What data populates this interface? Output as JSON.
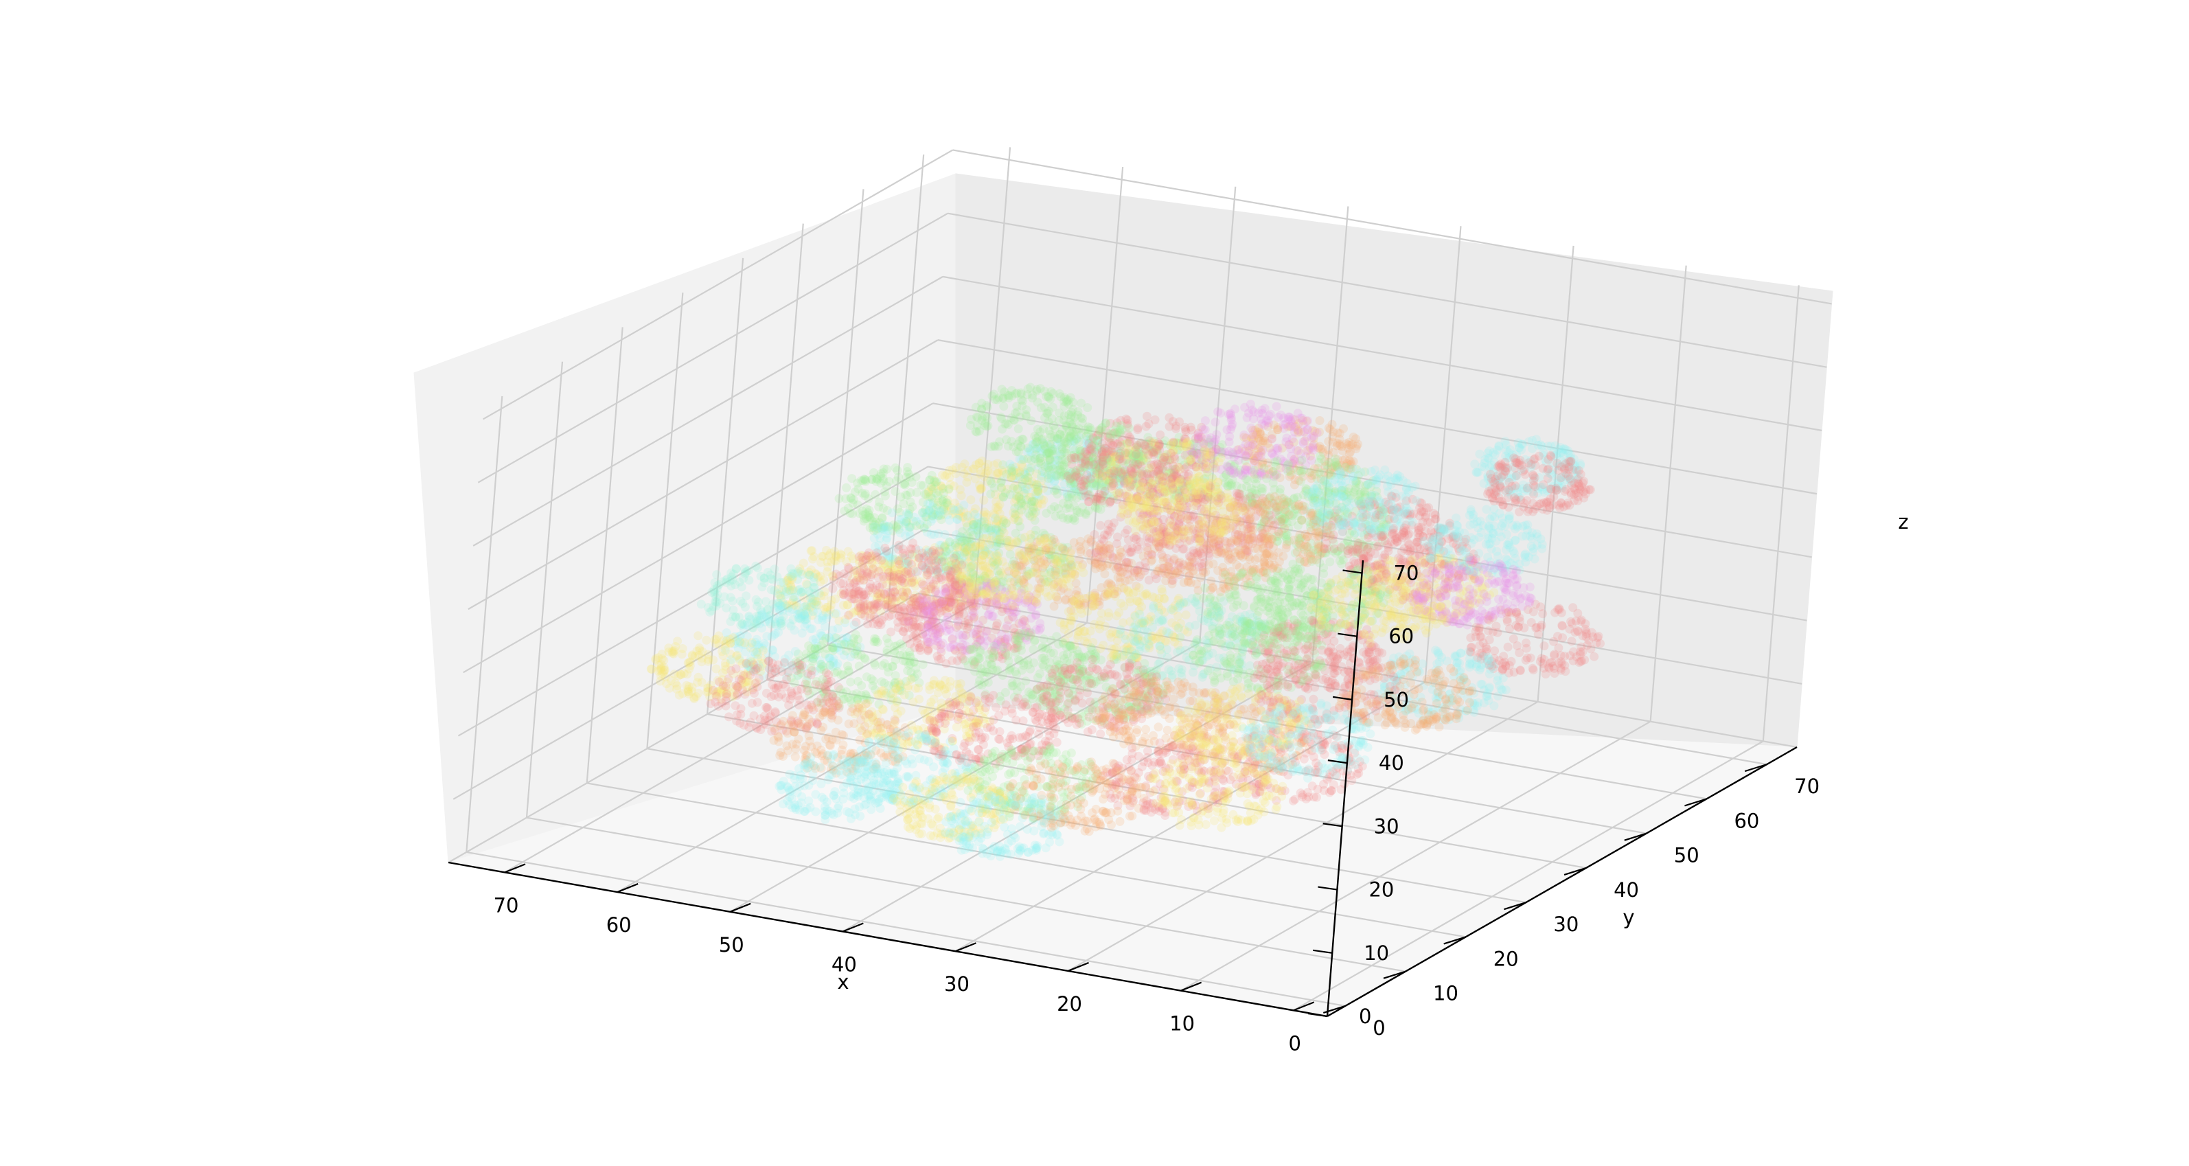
{
  "chart_data": {
    "type": "scatter",
    "dimensions": 3,
    "xlabel": "x",
    "ylabel": "y",
    "zlabel": "z",
    "xlim": [
      -3,
      75
    ],
    "ylim": [
      -3,
      75
    ],
    "zlim": [
      0,
      72
    ],
    "x_ticks": [
      0,
      10,
      20,
      30,
      40,
      50,
      60,
      70
    ],
    "y_ticks": [
      0,
      10,
      20,
      30,
      40,
      50,
      60,
      70
    ],
    "z_ticks": [
      0,
      10,
      20,
      30,
      40,
      50,
      60,
      70
    ],
    "x_tick_labels": [
      "0",
      "10",
      "20",
      "30",
      "40",
      "50",
      "60",
      "70"
    ],
    "y_tick_labels": [
      "0",
      "10",
      "20",
      "30",
      "40",
      "50",
      "60",
      "70"
    ],
    "z_tick_labels": [
      "0",
      "10",
      "20",
      "30",
      "40",
      "50",
      "60",
      "70"
    ],
    "grid": true,
    "marker_alpha": 0.22,
    "point_colors": [
      "#f08080",
      "#f5a86a",
      "#f4e26b",
      "#98ee8c",
      "#8ff2d8",
      "#8ff1f3",
      "#e68ae8"
    ],
    "cluster_extent": {
      "x": [
        2,
        70
      ],
      "y": [
        4,
        72
      ],
      "z": [
        14,
        52
      ]
    },
    "rings": [
      {
        "center": [
          6,
          34,
          44
        ],
        "radius": 4.5,
        "color": "#e68ae8"
      },
      {
        "center": [
          8,
          40,
          48
        ],
        "radius": 4.5,
        "color": "#8ff1f3"
      },
      {
        "center": [
          12,
          30,
          42
        ],
        "radius": 5.0,
        "color": "#f4e26b"
      },
      {
        "center": [
          16,
          44,
          40
        ],
        "radius": 5.0,
        "color": "#f08080"
      },
      {
        "center": [
          20,
          36,
          38
        ],
        "radius": 5.0,
        "color": "#98ee8c"
      },
      {
        "center": [
          24,
          50,
          44
        ],
        "radius": 4.5,
        "color": "#8ff1f3"
      },
      {
        "center": [
          28,
          42,
          42
        ],
        "radius": 5.0,
        "color": "#f5a86a"
      },
      {
        "center": [
          32,
          56,
          40
        ],
        "radius": 5.0,
        "color": "#98ee8c"
      },
      {
        "center": [
          36,
          48,
          38
        ],
        "radius": 5.0,
        "color": "#f08080"
      },
      {
        "center": [
          40,
          62,
          42
        ],
        "radius": 5.0,
        "color": "#e68ae8"
      },
      {
        "center": [
          44,
          54,
          40
        ],
        "radius": 5.0,
        "color": "#f4e26b"
      },
      {
        "center": [
          50,
          64,
          36
        ],
        "radius": 5.0,
        "color": "#f08080"
      },
      {
        "center": [
          54,
          56,
          34
        ],
        "radius": 5.0,
        "color": "#98ee8c"
      },
      {
        "center": [
          58,
          66,
          30
        ],
        "radius": 4.5,
        "color": "#8ff1f3"
      },
      {
        "center": [
          62,
          60,
          28
        ],
        "radius": 4.5,
        "color": "#f4e26b"
      },
      {
        "center": [
          4,
          20,
          36
        ],
        "radius": 5.0,
        "color": "#f5a86a"
      },
      {
        "center": [
          8,
          12,
          32
        ],
        "radius": 5.0,
        "color": "#8ff1f3"
      },
      {
        "center": [
          12,
          22,
          34
        ],
        "radius": 5.5,
        "color": "#f08080"
      },
      {
        "center": [
          16,
          16,
          30
        ],
        "radius": 5.0,
        "color": "#f4e26b"
      },
      {
        "center": [
          20,
          26,
          34
        ],
        "radius": 5.0,
        "color": "#98ee8c"
      },
      {
        "center": [
          24,
          18,
          28
        ],
        "radius": 5.0,
        "color": "#f5a86a"
      },
      {
        "center": [
          28,
          30,
          32
        ],
        "radius": 5.5,
        "color": "#8ff2d8"
      },
      {
        "center": [
          32,
          22,
          26
        ],
        "radius": 5.0,
        "color": "#f08080"
      },
      {
        "center": [
          36,
          34,
          30
        ],
        "radius": 5.0,
        "color": "#f4e26b"
      },
      {
        "center": [
          40,
          26,
          26
        ],
        "radius": 5.0,
        "color": "#98ee8c"
      },
      {
        "center": [
          44,
          40,
          32
        ],
        "radius": 5.0,
        "color": "#f5a86a"
      },
      {
        "center": [
          48,
          32,
          28
        ],
        "radius": 5.0,
        "color": "#e68ae8"
      },
      {
        "center": [
          52,
          44,
          30
        ],
        "radius": 5.0,
        "color": "#98ee8c"
      },
      {
        "center": [
          56,
          36,
          26
        ],
        "radius": 5.0,
        "color": "#f08080"
      },
      {
        "center": [
          60,
          48,
          28
        ],
        "radius": 5.0,
        "color": "#8ff1f3"
      },
      {
        "center": [
          64,
          40,
          24
        ],
        "radius": 5.0,
        "color": "#f4e26b"
      },
      {
        "center": [
          66,
          52,
          30
        ],
        "radius": 4.5,
        "color": "#98ee8c"
      },
      {
        "center": [
          14,
          8,
          24
        ],
        "radius": 5.0,
        "color": "#f4e26b"
      },
      {
        "center": [
          20,
          12,
          22
        ],
        "radius": 5.0,
        "color": "#f08080"
      },
      {
        "center": [
          26,
          8,
          20
        ],
        "radius": 5.0,
        "color": "#f5a86a"
      },
      {
        "center": [
          32,
          12,
          18
        ],
        "radius": 5.0,
        "color": "#98ee8c"
      },
      {
        "center": [
          38,
          16,
          22
        ],
        "radius": 5.0,
        "color": "#f08080"
      },
      {
        "center": [
          42,
          10,
          18
        ],
        "radius": 5.0,
        "color": "#8ff1f3"
      },
      {
        "center": [
          46,
          20,
          20
        ],
        "radius": 5.0,
        "color": "#f4e26b"
      },
      {
        "center": [
          50,
          14,
          18
        ],
        "radius": 5.0,
        "color": "#f5a86a"
      },
      {
        "center": [
          54,
          24,
          22
        ],
        "radius": 5.0,
        "color": "#98ee8c"
      },
      {
        "center": [
          58,
          18,
          20
        ],
        "radius": 5.0,
        "color": "#f08080"
      },
      {
        "center": [
          62,
          28,
          22
        ],
        "radius": 5.0,
        "color": "#8ff1f3"
      },
      {
        "center": [
          66,
          22,
          20
        ],
        "radius": 4.5,
        "color": "#f4e26b"
      },
      {
        "center": [
          68,
          34,
          24
        ],
        "radius": 4.5,
        "color": "#8ff2d8"
      },
      {
        "center": [
          30,
          4,
          16
        ],
        "radius": 4.5,
        "color": "#8ff1f3"
      },
      {
        "center": [
          36,
          6,
          16
        ],
        "radius": 4.5,
        "color": "#f4e26b"
      },
      {
        "center": [
          46,
          6,
          16
        ],
        "radius": 4.5,
        "color": "#8ff1f3"
      },
      {
        "center": [
          22,
          40,
          26
        ],
        "radius": 5.0,
        "color": "#f08080"
      },
      {
        "center": [
          30,
          46,
          28
        ],
        "radius": 5.0,
        "color": "#98ee8c"
      },
      {
        "center": [
          38,
          52,
          30
        ],
        "radius": 5.0,
        "color": "#f5a86a"
      },
      {
        "center": [
          46,
          58,
          26
        ],
        "radius": 5.0,
        "color": "#f08080"
      },
      {
        "center": [
          18,
          50,
          32
        ],
        "radius": 5.0,
        "color": "#f4e26b"
      },
      {
        "center": [
          26,
          58,
          34
        ],
        "radius": 5.0,
        "color": "#f08080"
      },
      {
        "center": [
          34,
          64,
          30
        ],
        "radius": 5.0,
        "color": "#98ee8c"
      },
      {
        "center": [
          40,
          70,
          36
        ],
        "radius": 4.5,
        "color": "#f5a86a"
      },
      {
        "center": [
          50,
          70,
          30
        ],
        "radius": 4.5,
        "color": "#98ee8c"
      },
      {
        "center": [
          10,
          52,
          50
        ],
        "radius": 4.0,
        "color": "#f08080"
      },
      {
        "center": [
          14,
          58,
          48
        ],
        "radius": 4.0,
        "color": "#8ff1f3"
      },
      {
        "center": [
          6,
          46,
          30
        ],
        "radius": 5.0,
        "color": "#f08080"
      },
      {
        "center": [
          10,
          38,
          26
        ],
        "radius": 5.0,
        "color": "#8ff1f3"
      },
      {
        "center": [
          42,
          44,
          46
        ],
        "radius": 4.5,
        "color": "#f08080"
      },
      {
        "center": [
          48,
          50,
          44
        ],
        "radius": 4.5,
        "color": "#98ee8c"
      },
      {
        "center": [
          34,
          38,
          46
        ],
        "radius": 4.5,
        "color": "#f4e26b"
      },
      {
        "center": [
          58,
          58,
          42
        ],
        "radius": 4.5,
        "color": "#98ee8c"
      },
      {
        "center": [
          52,
          26,
          36
        ],
        "radius": 5.0,
        "color": "#f08080"
      },
      {
        "center": [
          44,
          30,
          38
        ],
        "radius": 5.0,
        "color": "#f4e26b"
      },
      {
        "center": [
          24,
          32,
          16
        ],
        "radius": 5.0,
        "color": "#f5a86a"
      },
      {
        "center": [
          16,
          26,
          18
        ],
        "radius": 5.0,
        "color": "#f08080"
      },
      {
        "center": [
          40,
          38,
          16
        ],
        "radius": 5.0,
        "color": "#98ee8c"
      },
      {
        "center": [
          56,
          46,
          16
        ],
        "radius": 5.0,
        "color": "#f08080"
      },
      {
        "center": [
          62,
          54,
          18
        ],
        "radius": 4.5,
        "color": "#f4e26b"
      }
    ]
  }
}
